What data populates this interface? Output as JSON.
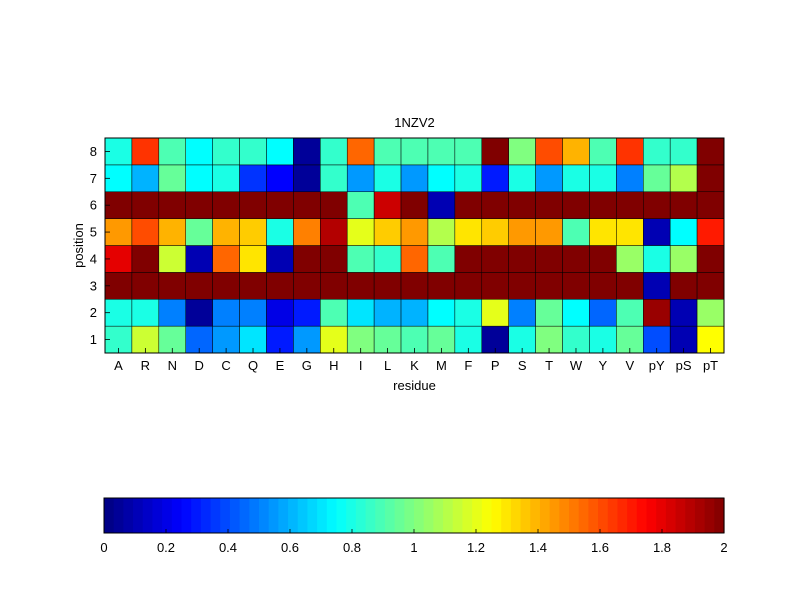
{
  "chart_data": {
    "type": "heatmap",
    "title": "1NZV2",
    "xlabel": "residue",
    "ylabel": "position",
    "x_categories": [
      "A",
      "R",
      "N",
      "D",
      "C",
      "Q",
      "E",
      "G",
      "H",
      "I",
      "L",
      "K",
      "M",
      "F",
      "P",
      "S",
      "T",
      "W",
      "Y",
      "V",
      "pY",
      "pS",
      "pT"
    ],
    "y_categories": [
      "1",
      "2",
      "3",
      "4",
      "5",
      "6",
      "7",
      "8"
    ],
    "colormap": "jet",
    "clim": [
      0,
      2
    ],
    "colorbar": {
      "orientation": "horizontal",
      "placement": "bottom",
      "ticks": [
        "0",
        "0.2",
        "0.4",
        "0.6",
        "0.8",
        "1",
        "1.2",
        "1.4",
        "1.6",
        "1.8",
        "2"
      ]
    },
    "grid": false,
    "values": [
      [
        0.85,
        1.15,
        0.95,
        0.45,
        0.55,
        0.7,
        0.3,
        0.55,
        1.2,
        1.0,
        0.95,
        0.9,
        0.95,
        0.8,
        0.05,
        0.8,
        1.0,
        0.85,
        0.8,
        0.95,
        0.4,
        0.1,
        1.25
      ],
      [
        0.8,
        0.8,
        0.5,
        0.05,
        0.5,
        0.5,
        0.2,
        0.3,
        0.9,
        0.7,
        0.6,
        0.6,
        0.75,
        0.8,
        1.2,
        0.5,
        0.95,
        0.75,
        0.45,
        0.9,
        1.95,
        0.1,
        1.05
      ],
      [
        2,
        2,
        2,
        2,
        2,
        2,
        2,
        2,
        2,
        2,
        2,
        2,
        2,
        2,
        2,
        2,
        2,
        2,
        2,
        2,
        0.1,
        2,
        2
      ],
      [
        1.8,
        2,
        1.15,
        0.1,
        1.55,
        1.3,
        0.1,
        2,
        2,
        0.9,
        0.85,
        1.55,
        0.9,
        2,
        2,
        2,
        2,
        2,
        2,
        1.05,
        0.8,
        1.05,
        2
      ],
      [
        1.45,
        1.6,
        1.4,
        0.95,
        1.4,
        1.35,
        0.8,
        1.5,
        1.9,
        1.2,
        1.35,
        1.45,
        1.1,
        1.3,
        1.35,
        1.45,
        1.45,
        0.9,
        1.3,
        1.3,
        0.1,
        0.75,
        1.7
      ],
      [
        2,
        2,
        2,
        2,
        2,
        2,
        2,
        2,
        2,
        0.9,
        1.85,
        2,
        0.1,
        2,
        2,
        2,
        2,
        2,
        2,
        2,
        2,
        2,
        2
      ],
      [
        0.75,
        0.6,
        0.95,
        0.75,
        0.8,
        0.35,
        0.25,
        0.05,
        0.85,
        0.55,
        0.8,
        0.55,
        0.75,
        0.8,
        0.3,
        0.8,
        0.55,
        0.8,
        0.8,
        0.5,
        0.95,
        1.1,
        2
      ],
      [
        0.8,
        1.65,
        0.9,
        0.75,
        0.85,
        0.85,
        0.75,
        0.05,
        0.85,
        1.55,
        0.9,
        0.9,
        0.9,
        0.9,
        2,
        1.0,
        1.6,
        1.4,
        0.9,
        1.65,
        0.85,
        0.85,
        2
      ]
    ]
  }
}
